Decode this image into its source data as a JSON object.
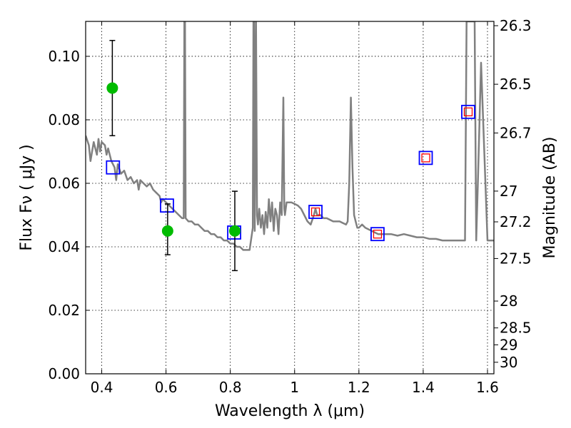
{
  "chart_data": {
    "type": "scatter",
    "xlabel": "Wavelength  λ (μm)",
    "ylabel": "Flux  Fν  ( μJy )",
    "y2label": "Magnitude (AB)",
    "xlim": [
      0.35,
      1.62
    ],
    "ylim": [
      0.0,
      0.111
    ],
    "grid": true,
    "x_ticks": [
      0.4,
      0.6,
      0.8,
      1.0,
      1.2,
      1.4,
      1.6
    ],
    "x_tick_labels": [
      "0.4",
      "0.6",
      "0.8",
      "1",
      "1.2",
      "1.4",
      "1.6"
    ],
    "y_ticks": [
      0.0,
      0.02,
      0.04,
      0.06,
      0.08,
      0.1
    ],
    "y_tick_labels": [
      "0.00",
      "0.02",
      "0.04",
      "0.06",
      "0.08",
      "0.10"
    ],
    "mag_ticks": [
      26.3,
      26.5,
      26.7,
      27,
      27.2,
      27.5,
      28,
      28.5,
      29,
      30
    ],
    "mag_tick_labels": [
      "26.3",
      "26.5",
      "26.7",
      "27",
      "27.2",
      "27.5",
      "28",
      "28.5",
      "29",
      "30"
    ],
    "series": [
      {
        "kind": "line",
        "color": "#808080",
        "points": [
          [
            0.35,
            0.075
          ],
          [
            0.36,
            0.072
          ],
          [
            0.365,
            0.067
          ],
          [
            0.37,
            0.07
          ],
          [
            0.375,
            0.073
          ],
          [
            0.38,
            0.071
          ],
          [
            0.385,
            0.069
          ],
          [
            0.39,
            0.074
          ],
          [
            0.395,
            0.07
          ],
          [
            0.4,
            0.073
          ],
          [
            0.41,
            0.072
          ],
          [
            0.415,
            0.069
          ],
          [
            0.42,
            0.071
          ],
          [
            0.43,
            0.067
          ],
          [
            0.44,
            0.065
          ],
          [
            0.445,
            0.061
          ],
          [
            0.45,
            0.066
          ],
          [
            0.46,
            0.063
          ],
          [
            0.47,
            0.064
          ],
          [
            0.48,
            0.061
          ],
          [
            0.49,
            0.062
          ],
          [
            0.5,
            0.06
          ],
          [
            0.51,
            0.061
          ],
          [
            0.515,
            0.058
          ],
          [
            0.52,
            0.061
          ],
          [
            0.53,
            0.06
          ],
          [
            0.54,
            0.059
          ],
          [
            0.55,
            0.06
          ],
          [
            0.56,
            0.058
          ],
          [
            0.57,
            0.057
          ],
          [
            0.58,
            0.056
          ],
          [
            0.585,
            0.054
          ],
          [
            0.59,
            0.055
          ],
          [
            0.6,
            0.054
          ],
          [
            0.61,
            0.053
          ],
          [
            0.62,
            0.052
          ],
          [
            0.63,
            0.051
          ],
          [
            0.64,
            0.05
          ],
          [
            0.65,
            0.049
          ],
          [
            0.655,
            0.049
          ],
          [
            0.657,
            0.111
          ],
          [
            0.659,
            0.111
          ],
          [
            0.661,
            0.049
          ],
          [
            0.67,
            0.048
          ],
          [
            0.68,
            0.048
          ],
          [
            0.69,
            0.047
          ],
          [
            0.7,
            0.047
          ],
          [
            0.71,
            0.046
          ],
          [
            0.72,
            0.045
          ],
          [
            0.73,
            0.045
          ],
          [
            0.74,
            0.044
          ],
          [
            0.75,
            0.044
          ],
          [
            0.76,
            0.043
          ],
          [
            0.77,
            0.043
          ],
          [
            0.78,
            0.042
          ],
          [
            0.79,
            0.042
          ],
          [
            0.8,
            0.041
          ],
          [
            0.81,
            0.041
          ],
          [
            0.82,
            0.04
          ],
          [
            0.83,
            0.04
          ],
          [
            0.84,
            0.039
          ],
          [
            0.85,
            0.039
          ],
          [
            0.86,
            0.039
          ],
          [
            0.87,
            0.046
          ],
          [
            0.872,
            0.111
          ],
          [
            0.874,
            0.111
          ],
          [
            0.876,
            0.045
          ],
          [
            0.88,
            0.111
          ],
          [
            0.883,
            0.05
          ],
          [
            0.886,
            0.047
          ],
          [
            0.89,
            0.052
          ],
          [
            0.895,
            0.046
          ],
          [
            0.9,
            0.05
          ],
          [
            0.905,
            0.044
          ],
          [
            0.91,
            0.051
          ],
          [
            0.915,
            0.046
          ],
          [
            0.92,
            0.055
          ],
          [
            0.925,
            0.048
          ],
          [
            0.93,
            0.054
          ],
          [
            0.935,
            0.045
          ],
          [
            0.94,
            0.052
          ],
          [
            0.945,
            0.05
          ],
          [
            0.95,
            0.044
          ],
          [
            0.955,
            0.054
          ],
          [
            0.96,
            0.05
          ],
          [
            0.965,
            0.087
          ],
          [
            0.968,
            0.052
          ],
          [
            0.97,
            0.05
          ],
          [
            0.975,
            0.054
          ],
          [
            0.98,
            0.054
          ],
          [
            0.99,
            0.054
          ],
          [
            1.0,
            0.0535
          ],
          [
            1.01,
            0.053
          ],
          [
            1.02,
            0.052
          ],
          [
            1.03,
            0.05
          ],
          [
            1.04,
            0.048
          ],
          [
            1.05,
            0.047
          ],
          [
            1.06,
            0.05
          ],
          [
            1.065,
            0.052
          ],
          [
            1.07,
            0.05
          ],
          [
            1.08,
            0.05
          ],
          [
            1.09,
            0.049
          ],
          [
            1.1,
            0.049
          ],
          [
            1.12,
            0.048
          ],
          [
            1.14,
            0.048
          ],
          [
            1.15,
            0.0475
          ],
          [
            1.16,
            0.047
          ],
          [
            1.165,
            0.048
          ],
          [
            1.17,
            0.06
          ],
          [
            1.175,
            0.087
          ],
          [
            1.18,
            0.065
          ],
          [
            1.185,
            0.05
          ],
          [
            1.19,
            0.048
          ],
          [
            1.195,
            0.046
          ],
          [
            1.2,
            0.046
          ],
          [
            1.21,
            0.047
          ],
          [
            1.22,
            0.046
          ],
          [
            1.24,
            0.045
          ],
          [
            1.26,
            0.044
          ],
          [
            1.28,
            0.044
          ],
          [
            1.3,
            0.044
          ],
          [
            1.32,
            0.0435
          ],
          [
            1.34,
            0.044
          ],
          [
            1.36,
            0.0435
          ],
          [
            1.38,
            0.043
          ],
          [
            1.4,
            0.043
          ],
          [
            1.42,
            0.0425
          ],
          [
            1.44,
            0.0425
          ],
          [
            1.46,
            0.042
          ],
          [
            1.48,
            0.042
          ],
          [
            1.5,
            0.042
          ],
          [
            1.52,
            0.042
          ],
          [
            1.53,
            0.042
          ],
          [
            1.535,
            0.111
          ],
          [
            1.55,
            0.111
          ],
          [
            1.56,
            0.111
          ],
          [
            1.565,
            0.042
          ],
          [
            1.57,
            0.06
          ],
          [
            1.58,
            0.098
          ],
          [
            1.59,
            0.07
          ],
          [
            1.6,
            0.042
          ],
          [
            1.61,
            0.042
          ],
          [
            1.62,
            0.042
          ]
        ]
      },
      {
        "kind": "marker",
        "marker": "open-square",
        "color": "#0000ff",
        "points": [
          [
            0.435,
            0.065
          ],
          [
            0.603,
            0.053
          ],
          [
            0.812,
            0.0445
          ],
          [
            1.065,
            0.051
          ],
          [
            1.258,
            0.044
          ],
          [
            1.408,
            0.068
          ],
          [
            1.54,
            0.0825
          ]
        ]
      },
      {
        "kind": "marker",
        "marker": "small-open-square",
        "color": "#ff0000",
        "points": [
          [
            1.065,
            0.051
          ],
          [
            1.258,
            0.044
          ],
          [
            1.408,
            0.068
          ],
          [
            1.54,
            0.0825
          ]
        ]
      },
      {
        "kind": "errorbar",
        "marker": "filled-circle",
        "color": "#00bb00",
        "points": [
          {
            "x": 0.433,
            "y": 0.09,
            "ylo": 0.075,
            "yhi": 0.105
          },
          {
            "x": 0.605,
            "y": 0.045,
            "ylo": 0.0375,
            "yhi": 0.0535
          },
          {
            "x": 0.814,
            "y": 0.045,
            "ylo": 0.0325,
            "yhi": 0.0575
          }
        ]
      }
    ]
  }
}
